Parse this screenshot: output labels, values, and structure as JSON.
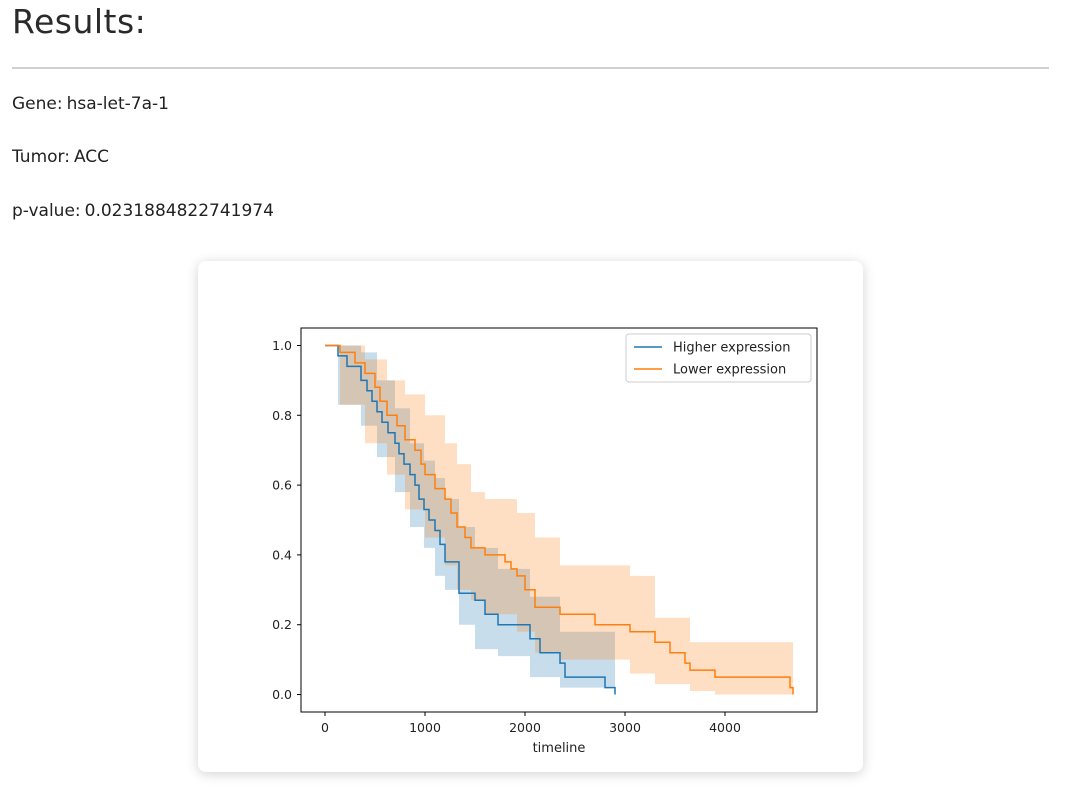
{
  "page": {
    "heading": "Results:",
    "gene_label": "Gene:",
    "gene": "hsa-let-7a-1",
    "tumor_label": "Tumor:",
    "tumor": "ACC",
    "pvalue_label": "p-value:",
    "pvalue": "0.0231884822741974"
  },
  "chart_data": {
    "type": "line",
    "subtype": "kaplan-meier step with confidence bands",
    "xlabel": "timeline",
    "ylabel": "",
    "xlim": [
      -240,
      4920
    ],
    "ylim": [
      -0.05,
      1.05
    ],
    "xticks": [
      0,
      1000,
      2000,
      3000,
      4000
    ],
    "xtick_labels": [
      "0",
      "1000",
      "2000",
      "3000",
      "4000"
    ],
    "yticks": [
      0.0,
      0.2,
      0.4,
      0.6,
      0.8,
      1.0
    ],
    "ytick_labels": [
      "0.0",
      "0.2",
      "0.4",
      "0.6",
      "0.8",
      "1.0"
    ],
    "grid": false,
    "legend_position": "top-right",
    "series": [
      {
        "name": "Higher expression",
        "color": "#1f77b4",
        "band_color": "#1f77b4",
        "x": [
          0,
          130,
          130,
          220,
          220,
          360,
          360,
          420,
          420,
          470,
          470,
          520,
          520,
          570,
          570,
          630,
          630,
          700,
          700,
          740,
          740,
          790,
          790,
          850,
          850,
          900,
          900,
          940,
          940,
          990,
          990,
          1040,
          1040,
          1100,
          1100,
          1150,
          1150,
          1200,
          1200,
          1340,
          1340,
          1500,
          1500,
          1600,
          1600,
          1730,
          1730,
          2050,
          2050,
          2150,
          2150,
          2350,
          2350,
          2400,
          2400,
          2800,
          2800,
          2900,
          2900
        ],
        "y": [
          1.0,
          1.0,
          0.97,
          0.97,
          0.94,
          0.94,
          0.9,
          0.9,
          0.87,
          0.87,
          0.84,
          0.84,
          0.81,
          0.81,
          0.78,
          0.78,
          0.75,
          0.75,
          0.72,
          0.72,
          0.69,
          0.69,
          0.66,
          0.66,
          0.63,
          0.63,
          0.6,
          0.6,
          0.56,
          0.56,
          0.53,
          0.53,
          0.5,
          0.5,
          0.47,
          0.47,
          0.43,
          0.43,
          0.38,
          0.38,
          0.29,
          0.29,
          0.27,
          0.27,
          0.23,
          0.23,
          0.2,
          0.2,
          0.16,
          0.16,
          0.12,
          0.12,
          0.09,
          0.09,
          0.05,
          0.05,
          0.02,
          0.02,
          0.0
        ],
        "ci_x": [
          0,
          130,
          130,
          360,
          360,
          520,
          520,
          700,
          700,
          850,
          850,
          990,
          990,
          1100,
          1100,
          1200,
          1200,
          1340,
          1340,
          1500,
          1500,
          1730,
          1730,
          2050,
          2050,
          2350,
          2350,
          2900
        ],
        "ci_lower": [
          1.0,
          1.0,
          0.83,
          0.83,
          0.77,
          0.77,
          0.68,
          0.68,
          0.58,
          0.58,
          0.48,
          0.48,
          0.42,
          0.42,
          0.34,
          0.34,
          0.3,
          0.3,
          0.2,
          0.2,
          0.13,
          0.13,
          0.11,
          0.11,
          0.05,
          0.05,
          0.02,
          0.02
        ],
        "ci_upper": [
          1.0,
          1.0,
          1.0,
          1.0,
          0.98,
          0.98,
          0.9,
          0.9,
          0.82,
          0.82,
          0.72,
          0.72,
          0.67,
          0.67,
          0.62,
          0.62,
          0.56,
          0.56,
          0.48,
          0.48,
          0.42,
          0.42,
          0.36,
          0.36,
          0.28,
          0.28,
          0.18,
          0.18
        ]
      },
      {
        "name": "Lower expression",
        "color": "#ff7f0e",
        "band_color": "#ff7f0e",
        "x": [
          0,
          150,
          150,
          300,
          300,
          400,
          400,
          500,
          500,
          550,
          550,
          620,
          620,
          720,
          720,
          800,
          800,
          900,
          900,
          960,
          960,
          1000,
          1000,
          1100,
          1100,
          1200,
          1200,
          1260,
          1260,
          1320,
          1320,
          1400,
          1400,
          1460,
          1460,
          1600,
          1600,
          1800,
          1800,
          1860,
          1860,
          1920,
          1920,
          2000,
          2000,
          2100,
          2100,
          2350,
          2350,
          2700,
          2700,
          3050,
          3050,
          3300,
          3300,
          3450,
          3450,
          3600,
          3600,
          3650,
          3650,
          3900,
          3900,
          4650,
          4650,
          4680,
          4680
        ],
        "y": [
          1.0,
          1.0,
          0.98,
          0.98,
          0.95,
          0.95,
          0.92,
          0.92,
          0.88,
          0.88,
          0.84,
          0.84,
          0.8,
          0.8,
          0.77,
          0.77,
          0.73,
          0.73,
          0.7,
          0.7,
          0.66,
          0.66,
          0.63,
          0.63,
          0.59,
          0.59,
          0.56,
          0.56,
          0.52,
          0.52,
          0.48,
          0.48,
          0.45,
          0.45,
          0.42,
          0.42,
          0.4,
          0.4,
          0.38,
          0.38,
          0.36,
          0.36,
          0.34,
          0.34,
          0.3,
          0.3,
          0.25,
          0.25,
          0.23,
          0.23,
          0.2,
          0.2,
          0.18,
          0.18,
          0.15,
          0.15,
          0.12,
          0.12,
          0.09,
          0.09,
          0.07,
          0.07,
          0.05,
          0.05,
          0.02,
          0.02,
          0.0
        ],
        "ci_x": [
          0,
          150,
          150,
          400,
          400,
          620,
          620,
          800,
          800,
          1000,
          1000,
          1200,
          1200,
          1320,
          1320,
          1460,
          1460,
          1600,
          1600,
          1920,
          1920,
          2100,
          2100,
          2350,
          2350,
          3050,
          3050,
          3300,
          3300,
          3650,
          3650,
          3900,
          3900,
          4680
        ],
        "ci_lower": [
          1.0,
          1.0,
          0.83,
          0.83,
          0.72,
          0.72,
          0.63,
          0.63,
          0.53,
          0.53,
          0.45,
          0.45,
          0.37,
          0.37,
          0.3,
          0.3,
          0.27,
          0.27,
          0.23,
          0.23,
          0.18,
          0.18,
          0.12,
          0.12,
          0.1,
          0.1,
          0.06,
          0.06,
          0.03,
          0.03,
          0.01,
          0.01,
          0.0,
          0.0
        ],
        "ci_upper": [
          1.0,
          1.0,
          1.0,
          1.0,
          0.96,
          0.96,
          0.9,
          0.9,
          0.86,
          0.86,
          0.8,
          0.8,
          0.72,
          0.72,
          0.66,
          0.66,
          0.58,
          0.58,
          0.56,
          0.56,
          0.52,
          0.52,
          0.45,
          0.45,
          0.37,
          0.37,
          0.34,
          0.34,
          0.22,
          0.22,
          0.15,
          0.15,
          0.15,
          0.15
        ]
      }
    ]
  }
}
